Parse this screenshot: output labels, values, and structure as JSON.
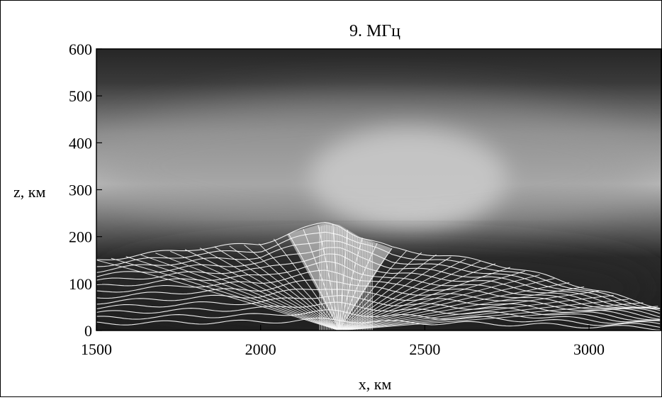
{
  "chart_data": {
    "type": "heatmap",
    "title": "9. МГц",
    "xlabel": "x, км",
    "ylabel": "z, км",
    "xlim": [
      1500,
      3220
    ],
    "ylim": [
      0,
      600
    ],
    "x_ticks": [
      1500,
      2000,
      2500,
      3000
    ],
    "y_ticks": [
      0,
      100,
      200,
      300,
      400,
      500,
      600
    ],
    "colormap": "grayscale (black = low, white = high)",
    "intensity_features": [
      {
        "feature": "bright layer core",
        "x": [
          2150,
          2750
        ],
        "z": [
          220,
          430
        ],
        "level": 1.0
      },
      {
        "feature": "bright layer halo",
        "x": [
          1500,
          3200
        ],
        "z": [
          200,
          500
        ],
        "level": 0.6
      },
      {
        "feature": "dark lower region",
        "x": [
          1500,
          3220
        ],
        "z": [
          0,
          180
        ],
        "level": 0.15
      }
    ],
    "ray_fan_envelope": {
      "x": [
        1500,
        1800,
        2000,
        2100,
        2200,
        2240,
        2300,
        2400,
        2500,
        2700,
        2900,
        3100,
        3220
      ],
      "z": [
        150,
        175,
        185,
        210,
        230,
        225,
        200,
        175,
        165,
        145,
        110,
        70,
        50
      ]
    },
    "ray_source": {
      "x": 2240,
      "z": 0
    }
  }
}
